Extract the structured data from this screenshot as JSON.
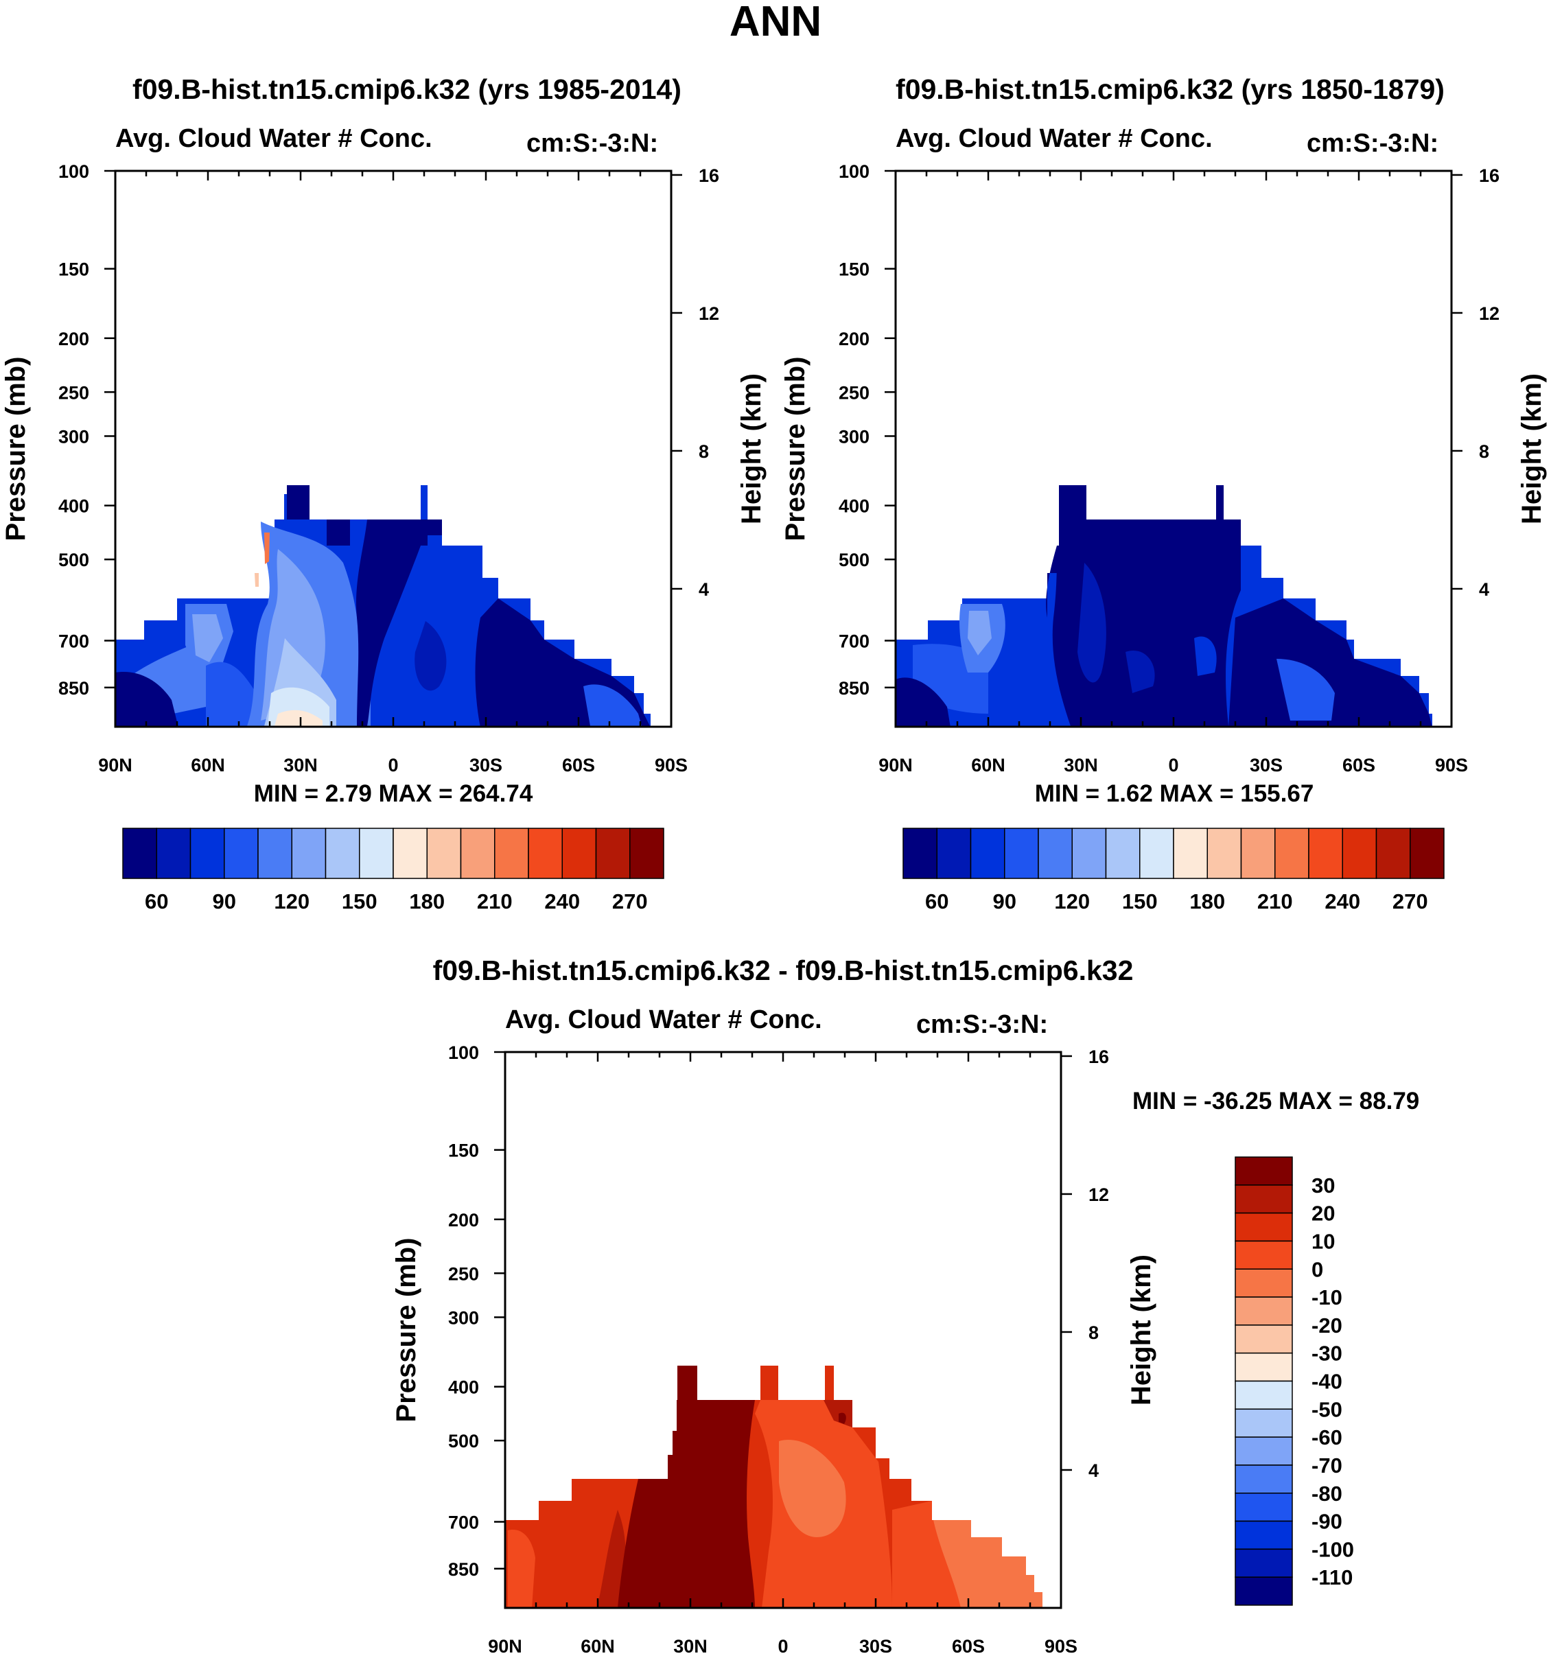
{
  "figure_title": "ANN",
  "panels": [
    {
      "title": "f09.B-hist.tn15.cmip6.k32 (yrs 1985-2014)",
      "left_label": "Avg. Cloud Water # Conc.",
      "right_label": "cm:S:-3:N:",
      "ylabel_left": "Pressure (mb)",
      "ylabel_right": "Height (km)",
      "stats": "MIN =   2.79  MAX = 264.74"
    },
    {
      "title": "f09.B-hist.tn15.cmip6.k32 (yrs 1850-1879)",
      "left_label": "Avg. Cloud Water # Conc.",
      "right_label": "cm:S:-3:N:",
      "ylabel_left": "Pressure (mb)",
      "ylabel_right": "Height (km)",
      "stats": "MIN =   1.62  MAX = 155.67"
    },
    {
      "title": "f09.B-hist.tn15.cmip6.k32 - f09.B-hist.tn15.cmip6.k32",
      "left_label": "Avg. Cloud Water # Conc.",
      "right_label": "cm:S:-3:N:",
      "ylabel_left": "Pressure (mb)",
      "ylabel_right": "Height (km)",
      "stats": "MIN = -36.25  MAX =  88.79"
    }
  ],
  "chart_data": [
    {
      "type": "heatmap",
      "title": "f09.B-hist.tn15.cmip6.k32 (yrs 1985-2014)",
      "variable": "Avg. Cloud Water # Conc.",
      "units": "cm:S:-3:N:",
      "xlabel": "",
      "ylabel": "Pressure (mb)",
      "ylabel_right": "Height (km)",
      "xlim": [
        90,
        -90
      ],
      "x_ticks": [
        "90N",
        "60N",
        "30N",
        "0",
        "30S",
        "60S",
        "90S"
      ],
      "x_tick_values": [
        90,
        60,
        30,
        0,
        -30,
        -60,
        -90
      ],
      "ylim": [
        100,
        1000
      ],
      "y_ticks": [
        100,
        150,
        200,
        250,
        300,
        400,
        500,
        700,
        850
      ],
      "y_right_ticks": [
        16,
        12,
        8,
        4
      ],
      "colorbar_labels": [
        "60",
        "90",
        "120",
        "150",
        "180",
        "210",
        "240",
        "270"
      ],
      "colorbar_colors": [
        "#00007f",
        "#0019b4",
        "#0033dc",
        "#1f55f0",
        "#4a7cf5",
        "#7fa4f7",
        "#aac6f8",
        "#d6e8fa",
        "#fde9d8",
        "#fbc6a8",
        "#f8a07a",
        "#f67546",
        "#f24a1e",
        "#dc2e0a",
        "#b31906",
        "#800000"
      ],
      "min": 2.79,
      "max": 264.74
    },
    {
      "type": "heatmap",
      "title": "f09.B-hist.tn15.cmip6.k32 (yrs 1850-1879)",
      "variable": "Avg. Cloud Water # Conc.",
      "units": "cm:S:-3:N:",
      "xlabel": "",
      "ylabel": "Pressure (mb)",
      "ylabel_right": "Height (km)",
      "xlim": [
        90,
        -90
      ],
      "x_ticks": [
        "90N",
        "60N",
        "30N",
        "0",
        "30S",
        "60S",
        "90S"
      ],
      "x_tick_values": [
        90,
        60,
        30,
        0,
        -30,
        -60,
        -90
      ],
      "ylim": [
        100,
        1000
      ],
      "y_ticks": [
        100,
        150,
        200,
        250,
        300,
        400,
        500,
        700,
        850
      ],
      "y_right_ticks": [
        16,
        12,
        8,
        4
      ],
      "colorbar_labels": [
        "60",
        "90",
        "120",
        "150",
        "180",
        "210",
        "240",
        "270"
      ],
      "colorbar_colors": [
        "#00007f",
        "#0019b4",
        "#0033dc",
        "#1f55f0",
        "#4a7cf5",
        "#7fa4f7",
        "#aac6f8",
        "#d6e8fa",
        "#fde9d8",
        "#fbc6a8",
        "#f8a07a",
        "#f67546",
        "#f24a1e",
        "#dc2e0a",
        "#b31906",
        "#800000"
      ],
      "min": 1.62,
      "max": 155.67
    },
    {
      "type": "heatmap",
      "title": "f09.B-hist.tn15.cmip6.k32 - f09.B-hist.tn15.cmip6.k32",
      "variable": "Avg. Cloud Water # Conc.",
      "units": "cm:S:-3:N:",
      "xlabel": "",
      "ylabel": "Pressure (mb)",
      "ylabel_right": "Height (km)",
      "xlim": [
        90,
        -90
      ],
      "x_ticks": [
        "90N",
        "60N",
        "30N",
        "0",
        "30S",
        "60S",
        "90S"
      ],
      "x_tick_values": [
        90,
        60,
        30,
        0,
        -30,
        -60,
        -90
      ],
      "ylim": [
        100,
        1000
      ],
      "y_ticks": [
        100,
        150,
        200,
        250,
        300,
        400,
        500,
        700,
        850
      ],
      "y_right_ticks": [
        16,
        12,
        8,
        4
      ],
      "colorbar_labels": [
        "30",
        "20",
        "10",
        "0",
        "-10",
        "-20",
        "-30",
        "-40",
        "-50",
        "-60",
        "-70",
        "-80",
        "-90",
        "-100",
        "-110"
      ],
      "colorbar_colors": [
        "#800000",
        "#b31906",
        "#dc2e0a",
        "#f24a1e",
        "#f67546",
        "#f8a07a",
        "#fbc6a8",
        "#fde9d8",
        "#d6e8fa",
        "#aac6f8",
        "#7fa4f7",
        "#4a7cf5",
        "#1f55f0",
        "#0033dc",
        "#0019b4",
        "#00007f"
      ],
      "min": -36.25,
      "max": 88.79
    }
  ]
}
